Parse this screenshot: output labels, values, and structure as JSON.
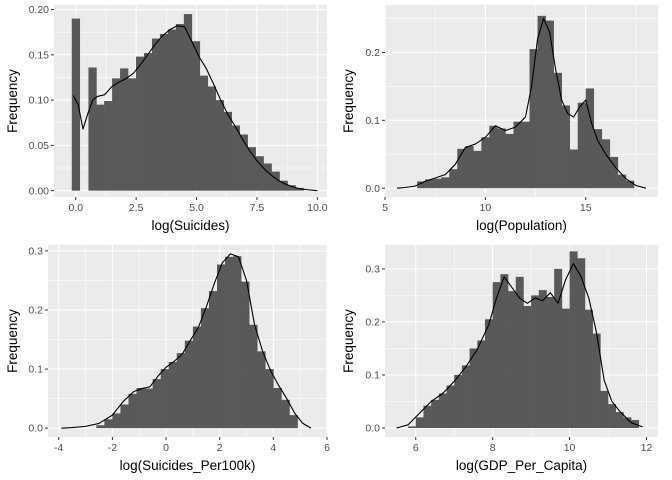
{
  "chart_data": [
    {
      "type": "histogram",
      "xlabel": "log(Suicides)",
      "ylabel": "Frequency",
      "xlim": [
        -0.9,
        10.4
      ],
      "ylim": [
        -0.007,
        0.205
      ],
      "x_ticks": [
        0,
        2.5,
        5,
        7.5,
        10
      ],
      "x_tick_labels": [
        "0.0",
        "2.5",
        "5.0",
        "7.5",
        "10.0"
      ],
      "y_ticks": [
        0,
        0.05,
        0.1,
        0.15,
        0.2
      ],
      "y_tick_labels": [
        "0.00",
        "0.05",
        "0.10",
        "0.15",
        "0.20"
      ],
      "bin_width": 0.33,
      "bin_centers": [
        0,
        0.69,
        1.01,
        1.34,
        1.67,
        2.0,
        2.33,
        2.66,
        2.99,
        3.32,
        3.65,
        3.98,
        4.31,
        4.64,
        4.97,
        5.3,
        5.63,
        5.96,
        6.29,
        6.62,
        6.95,
        7.28,
        7.61,
        7.94,
        8.27,
        8.6,
        8.93,
        9.26
      ],
      "frequencies": [
        0.19,
        0.136,
        0.095,
        0.099,
        0.124,
        0.135,
        0.124,
        0.148,
        0.152,
        0.168,
        0.173,
        0.178,
        0.184,
        0.195,
        0.165,
        0.127,
        0.115,
        0.1,
        0.087,
        0.072,
        0.062,
        0.048,
        0.038,
        0.03,
        0.021,
        0.011,
        0.006,
        0.003
      ],
      "density_curve": {
        "x": [
          -0.1,
          0.1,
          0.3,
          0.5,
          0.7,
          0.9,
          1.2,
          1.5,
          1.8,
          2.1,
          2.4,
          2.7,
          3.0,
          3.3,
          3.6,
          3.9,
          4.2,
          4.5,
          4.8,
          5.1,
          5.4,
          5.7,
          6.0,
          6.3,
          6.6,
          6.9,
          7.2,
          7.5,
          7.8,
          8.1,
          8.4,
          8.7,
          9.0,
          9.3,
          9.6,
          10.0
        ],
        "y": [
          0.105,
          0.095,
          0.068,
          0.085,
          0.1,
          0.104,
          0.106,
          0.115,
          0.12,
          0.124,
          0.13,
          0.14,
          0.151,
          0.162,
          0.171,
          0.178,
          0.182,
          0.181,
          0.165,
          0.148,
          0.135,
          0.118,
          0.1,
          0.084,
          0.071,
          0.057,
          0.044,
          0.033,
          0.024,
          0.017,
          0.011,
          0.007,
          0.004,
          0.002,
          0.001,
          0.0
        ]
      }
    },
    {
      "type": "histogram",
      "xlabel": "log(Population)",
      "ylabel": "Frequency",
      "xlim": [
        5.0,
        18.6
      ],
      "ylim": [
        -0.013,
        0.27
      ],
      "x_ticks": [
        5,
        10,
        15
      ],
      "x_tick_labels": [
        "5",
        "10",
        "15"
      ],
      "y_ticks": [
        0,
        0.1,
        0.2
      ],
      "y_tick_labels": [
        "0.0",
        "0.1",
        "0.2"
      ],
      "bin_width": 0.4,
      "bin_centers": [
        6.8,
        7.2,
        7.6,
        8.0,
        8.4,
        8.8,
        9.2,
        9.6,
        10.0,
        10.4,
        10.8,
        11.2,
        11.6,
        12.0,
        12.4,
        12.8,
        13.2,
        13.6,
        14.0,
        14.4,
        14.8,
        15.2,
        15.6,
        16.0,
        16.4,
        16.8,
        17.2
      ],
      "frequencies": [
        0.01,
        0.013,
        0.014,
        0.016,
        0.028,
        0.058,
        0.062,
        0.055,
        0.075,
        0.092,
        0.088,
        0.08,
        0.098,
        0.098,
        0.205,
        0.254,
        0.247,
        0.17,
        0.122,
        0.057,
        0.126,
        0.147,
        0.087,
        0.072,
        0.046,
        0.02,
        0.011
      ],
      "density_curve": {
        "x": [
          5.6,
          6.0,
          6.5,
          7.0,
          7.5,
          8.0,
          8.5,
          9.0,
          9.5,
          10.0,
          10.5,
          11.0,
          11.5,
          12.0,
          12.3,
          12.6,
          12.9,
          13.2,
          13.5,
          13.8,
          14.1,
          14.4,
          14.7,
          15.0,
          15.3,
          15.6,
          16.0,
          16.5,
          17.0,
          17.5,
          18.0
        ],
        "y": [
          0.0,
          0.001,
          0.003,
          0.01,
          0.015,
          0.02,
          0.035,
          0.06,
          0.065,
          0.075,
          0.092,
          0.085,
          0.09,
          0.105,
          0.15,
          0.22,
          0.25,
          0.23,
          0.175,
          0.13,
          0.11,
          0.105,
          0.12,
          0.13,
          0.095,
          0.07,
          0.05,
          0.03,
          0.014,
          0.004,
          0.0
        ]
      }
    },
    {
      "type": "histogram",
      "xlabel": "log(Suicides_Per100k)",
      "ylabel": "Frequency",
      "xlim": [
        -4.4,
        6.0
      ],
      "ylim": [
        -0.015,
        0.31
      ],
      "x_ticks": [
        -4,
        -2,
        0,
        2,
        4,
        6
      ],
      "x_tick_labels": [
        "-4",
        "-2",
        "0",
        "2",
        "4",
        "6"
      ],
      "y_ticks": [
        0,
        0.1,
        0.2,
        0.3
      ],
      "y_tick_labels": [
        "0.0",
        "0.1",
        "0.2",
        "0.3"
      ],
      "bin_width": 0.3,
      "bin_centers": [
        -2.45,
        -2.15,
        -1.85,
        -1.55,
        -1.25,
        -0.95,
        -0.65,
        -0.35,
        -0.05,
        0.25,
        0.55,
        0.85,
        1.15,
        1.45,
        1.75,
        2.05,
        2.35,
        2.65,
        2.95,
        3.25,
        3.55,
        3.85,
        4.15,
        4.45,
        4.75
      ],
      "frequencies": [
        0.005,
        0.015,
        0.025,
        0.04,
        0.058,
        0.068,
        0.067,
        0.083,
        0.1,
        0.112,
        0.127,
        0.148,
        0.172,
        0.203,
        0.232,
        0.277,
        0.29,
        0.291,
        0.248,
        0.175,
        0.13,
        0.1,
        0.068,
        0.048,
        0.022
      ],
      "density_curve": {
        "x": [
          -3.9,
          -3.5,
          -3.0,
          -2.5,
          -2.0,
          -1.6,
          -1.2,
          -0.9,
          -0.6,
          -0.3,
          0.0,
          0.3,
          0.6,
          0.9,
          1.2,
          1.5,
          1.8,
          2.1,
          2.4,
          2.7,
          3.0,
          3.3,
          3.6,
          3.9,
          4.2,
          4.5,
          4.8,
          5.1,
          5.4
        ],
        "y": [
          0.0,
          0.001,
          0.003,
          0.008,
          0.022,
          0.045,
          0.062,
          0.067,
          0.07,
          0.088,
          0.103,
          0.113,
          0.125,
          0.148,
          0.17,
          0.205,
          0.245,
          0.28,
          0.295,
          0.29,
          0.25,
          0.175,
          0.13,
          0.097,
          0.072,
          0.05,
          0.025,
          0.008,
          0.0
        ]
      }
    },
    {
      "type": "histogram",
      "xlabel": "log(GDP_Per_Capita)",
      "ylabel": "Frequency",
      "xlim": [
        5.2,
        12.3
      ],
      "ylim": [
        -0.017,
        0.345
      ],
      "x_ticks": [
        6,
        8,
        10,
        12
      ],
      "x_tick_labels": [
        "6",
        "8",
        "10",
        "12"
      ],
      "y_ticks": [
        0,
        0.1,
        0.2,
        0.3
      ],
      "y_tick_labels": [
        "0.0",
        "0.1",
        "0.2",
        "0.3"
      ],
      "bin_width": 0.2,
      "bin_centers": [
        5.9,
        6.1,
        6.3,
        6.5,
        6.7,
        6.9,
        7.1,
        7.3,
        7.5,
        7.7,
        7.9,
        8.1,
        8.3,
        8.5,
        8.7,
        8.9,
        9.1,
        9.3,
        9.5,
        9.7,
        9.9,
        10.1,
        10.3,
        10.5,
        10.7,
        10.9,
        11.1,
        11.3,
        11.5,
        11.7
      ],
      "frequencies": [
        0.003,
        0.02,
        0.042,
        0.053,
        0.065,
        0.08,
        0.1,
        0.118,
        0.15,
        0.165,
        0.205,
        0.275,
        0.29,
        0.258,
        0.285,
        0.23,
        0.25,
        0.26,
        0.247,
        0.3,
        0.225,
        0.333,
        0.32,
        0.223,
        0.178,
        0.07,
        0.045,
        0.03,
        0.02,
        0.015
      ],
      "density_curve": {
        "x": [
          5.5,
          5.8,
          6.1,
          6.4,
          6.7,
          7.0,
          7.3,
          7.6,
          7.9,
          8.1,
          8.3,
          8.5,
          8.7,
          8.9,
          9.1,
          9.3,
          9.5,
          9.7,
          9.9,
          10.1,
          10.3,
          10.5,
          10.7,
          10.9,
          11.1,
          11.3,
          11.6,
          11.9
        ],
        "y": [
          0.0,
          0.006,
          0.028,
          0.05,
          0.065,
          0.088,
          0.115,
          0.148,
          0.195,
          0.245,
          0.285,
          0.265,
          0.245,
          0.235,
          0.245,
          0.24,
          0.255,
          0.235,
          0.28,
          0.31,
          0.285,
          0.245,
          0.18,
          0.09,
          0.05,
          0.032,
          0.01,
          0.002
        ]
      }
    }
  ]
}
